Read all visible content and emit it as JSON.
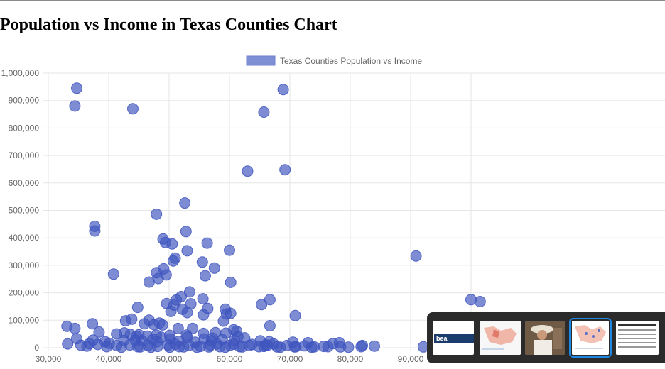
{
  "page": {
    "title": "Population vs Income in Texas Counties Chart"
  },
  "chart_data": {
    "type": "scatter",
    "legend": {
      "label": "Texas Counties Population vs Income",
      "placement": "top-center",
      "color": "#7f8fd4"
    },
    "point_color": "#3f55be",
    "grid": true,
    "xlim": [
      30000,
      100000
    ],
    "ylim": [
      0,
      1000000
    ],
    "x_ticks": [
      "30,000",
      "40,000",
      "50,000",
      "60,000",
      "70,000",
      "80,000",
      "90,000"
    ],
    "y_ticks": [
      "0",
      "100,000",
      "200,000",
      "300,000",
      "400,000",
      "500,000",
      "600,000",
      "700,000",
      "800,000",
      "900,000",
      "1,000,000"
    ],
    "series": [
      {
        "points": [
          [
            34700,
            945000
          ],
          [
            34400,
            880000
          ],
          [
            44000,
            870000
          ],
          [
            68900,
            940000
          ],
          [
            65700,
            858000
          ],
          [
            63000,
            643000
          ],
          [
            69200,
            648000
          ],
          [
            52600,
            527000
          ],
          [
            47900,
            486000
          ],
          [
            37700,
            442000
          ],
          [
            37700,
            425000
          ],
          [
            52800,
            423000
          ],
          [
            49000,
            396000
          ],
          [
            49400,
            383000
          ],
          [
            50500,
            378000
          ],
          [
            56300,
            381000
          ],
          [
            53000,
            353000
          ],
          [
            60000,
            355000
          ],
          [
            90900,
            334000
          ],
          [
            51000,
            326000
          ],
          [
            50700,
            316000
          ],
          [
            55500,
            312000
          ],
          [
            57500,
            290000
          ],
          [
            49100,
            287000
          ],
          [
            47900,
            273000
          ],
          [
            49500,
            265000
          ],
          [
            56000,
            262000
          ],
          [
            40800,
            268000
          ],
          [
            48200,
            252000
          ],
          [
            46700,
            239000
          ],
          [
            60200,
            238000
          ],
          [
            53400,
            203000
          ],
          [
            52000,
            186000
          ],
          [
            51200,
            174000
          ],
          [
            55600,
            178000
          ],
          [
            66700,
            175000
          ],
          [
            49600,
            161000
          ],
          [
            50800,
            155000
          ],
          [
            53600,
            160000
          ],
          [
            65300,
            157000
          ],
          [
            52200,
            140000
          ],
          [
            59300,
            140000
          ],
          [
            56400,
            143000
          ],
          [
            53000,
            128000
          ],
          [
            50300,
            132000
          ],
          [
            44800,
            147000
          ],
          [
            59500,
            123000
          ],
          [
            60200,
            125000
          ],
          [
            55700,
            120000
          ],
          [
            70900,
            117000
          ],
          [
            43800,
            104000
          ],
          [
            46700,
            100000
          ],
          [
            42800,
            98000
          ],
          [
            48400,
            90000
          ],
          [
            59000,
            97000
          ],
          [
            37300,
            87000
          ],
          [
            45900,
            87000
          ],
          [
            47500,
            84000
          ],
          [
            48900,
            83000
          ],
          [
            66700,
            80000
          ],
          [
            33100,
            78000
          ],
          [
            34400,
            70000
          ],
          [
            51500,
            70000
          ],
          [
            53900,
            70000
          ],
          [
            60700,
            65000
          ],
          [
            61200,
            60000
          ],
          [
            57700,
            55000
          ],
          [
            55700,
            52000
          ],
          [
            59400,
            53000
          ],
          [
            38400,
            57000
          ],
          [
            41300,
            50000
          ],
          [
            42600,
            54000
          ],
          [
            43600,
            48000
          ],
          [
            45000,
            47000
          ],
          [
            47900,
            46000
          ],
          [
            50100,
            45000
          ],
          [
            52900,
            46000
          ],
          [
            44600,
            42000
          ],
          [
            46400,
            42000
          ],
          [
            48700,
            38000
          ],
          [
            53000,
            38000
          ],
          [
            57200,
            35000
          ],
          [
            61400,
            40000
          ],
          [
            62500,
            36000
          ],
          [
            44400,
            28000
          ],
          [
            47300,
            30000
          ],
          [
            50200,
            32000
          ],
          [
            55800,
            32000
          ],
          [
            58800,
            30000
          ],
          [
            34700,
            33000
          ],
          [
            37400,
            28000
          ],
          [
            39400,
            22000
          ],
          [
            42500,
            26000
          ],
          [
            45500,
            25000
          ],
          [
            48000,
            22000
          ],
          [
            51600,
            23000
          ],
          [
            54300,
            20000
          ],
          [
            57000,
            25000
          ],
          [
            60800,
            27000
          ],
          [
            65100,
            25000
          ],
          [
            66600,
            22000
          ],
          [
            70500,
            20000
          ],
          [
            73000,
            18000
          ],
          [
            77100,
            15000
          ],
          [
            78200,
            18000
          ],
          [
            33200,
            14000
          ],
          [
            35400,
            9000
          ],
          [
            36400,
            6000
          ],
          [
            38200,
            12000
          ],
          [
            39700,
            4000
          ],
          [
            41300,
            8000
          ],
          [
            43500,
            10000
          ],
          [
            44800,
            4000
          ],
          [
            46500,
            8000
          ],
          [
            48100,
            5000
          ],
          [
            49800,
            10000
          ],
          [
            51700,
            4000
          ],
          [
            53300,
            9000
          ],
          [
            55200,
            5000
          ],
          [
            56800,
            10000
          ],
          [
            58400,
            4000
          ],
          [
            60100,
            9000
          ],
          [
            61700,
            4000
          ],
          [
            63300,
            8000
          ],
          [
            64900,
            4000
          ],
          [
            66300,
            9000
          ],
          [
            67900,
            3000
          ],
          [
            69500,
            8000
          ],
          [
            71000,
            4000
          ],
          [
            72400,
            7000
          ],
          [
            74000,
            3000
          ],
          [
            75600,
            5000
          ],
          [
            76300,
            4000
          ],
          [
            78400,
            3000
          ],
          [
            79700,
            2000
          ],
          [
            81800,
            4000
          ],
          [
            82000,
            8000
          ],
          [
            84000,
            6000
          ],
          [
            92100,
            3000
          ],
          [
            42100,
            2000
          ],
          [
            45200,
            3000
          ],
          [
            47000,
            2000
          ],
          [
            50100,
            2000
          ],
          [
            52400,
            3000
          ],
          [
            54600,
            2000
          ],
          [
            56600,
            3000
          ],
          [
            59300,
            2000
          ],
          [
            62100,
            3000
          ],
          [
            65700,
            5000
          ],
          [
            68400,
            2000
          ],
          [
            70800,
            3000
          ],
          [
            73600,
            2000
          ],
          [
            66000,
            10000
          ],
          [
            36800,
            15000
          ],
          [
            40100,
            16000
          ],
          [
            51000,
            13000
          ],
          [
            57900,
            14000
          ],
          [
            60700,
            13000
          ],
          [
            63700,
            12000
          ],
          [
            67300,
            14000
          ],
          [
            95000,
            10000
          ],
          [
            97500,
            5000
          ],
          [
            100000,
            175000
          ],
          [
            101500,
            168000
          ]
        ]
      }
    ]
  },
  "task_switcher": {
    "thumbnails": [
      {
        "name": "bea-window",
        "text": "bea"
      },
      {
        "name": "map-window"
      },
      {
        "name": "photo-window"
      },
      {
        "name": "chart-window",
        "selected": true
      },
      {
        "name": "table-window"
      }
    ]
  }
}
